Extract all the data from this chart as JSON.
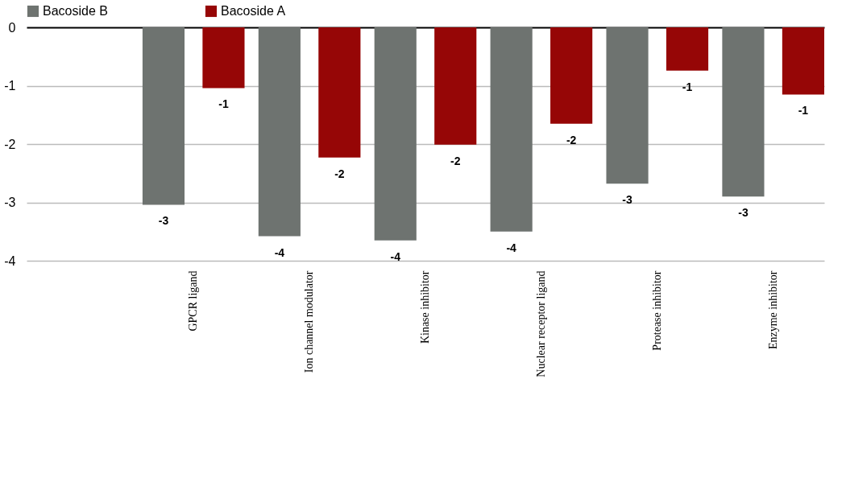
{
  "chart_data": {
    "type": "bar",
    "categories": [
      null,
      "GPCR ligand",
      "Ion channel modulator",
      "Kinase inhibitor",
      "Nuclear receptor ligand",
      "Protease inhibitor",
      "Enzyme inhibitor"
    ],
    "series": [
      {
        "name": "Bacoside B",
        "color": "#6e7370",
        "values": [
          null,
          -3.04,
          -3.58,
          -3.65,
          -3.5,
          -2.68,
          -2.9
        ],
        "value_labels": [
          null,
          "-3",
          "-4",
          "-4",
          "-4",
          "-3",
          "-3"
        ]
      },
      {
        "name": "Bacoside A",
        "color": "#960606",
        "values": [
          null,
          -1.04,
          -2.23,
          -2.01,
          -1.65,
          -0.74,
          -1.15
        ],
        "value_labels": [
          null,
          "-1",
          "-2",
          "-2",
          "-2",
          "-1",
          "-1"
        ]
      }
    ],
    "ylim": [
      -4,
      0
    ],
    "yticks": [
      0,
      -1,
      -2,
      -3,
      -4
    ],
    "grid": "y",
    "legend": "top"
  }
}
